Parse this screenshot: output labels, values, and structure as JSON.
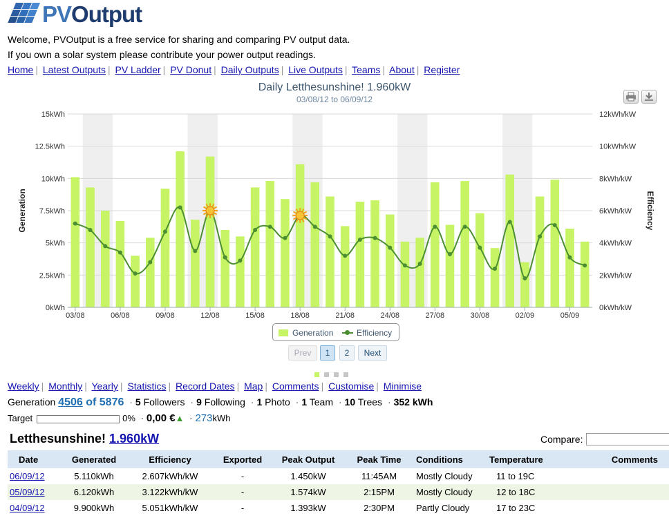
{
  "header": {
    "logo_text_pv": "PV",
    "logo_text_output": "Output",
    "welcome_line": "Welcome, PVOutput is a free service for sharing and comparing PV output data.",
    "contribute_line": "If you own a solar system please contribute your power output readings."
  },
  "nav": [
    "Home",
    "Latest Outputs",
    "PV Ladder",
    "PV Donut",
    "Daily Outputs",
    "Live Outputs",
    "Teams",
    "About",
    "Register"
  ],
  "colors": {
    "bar": "#c7f464",
    "line": "#4b8f32",
    "weekend_band": "#efefef",
    "link": "#1515b0",
    "accent_blue": "#1f6fb2"
  },
  "chart_data": {
    "type": "bar",
    "title": "Daily Letthesunshine! 1.960kW",
    "subtitle": "03/08/12 to 06/09/12",
    "ylabel": "Generation",
    "y2label": "Efficiency",
    "ylim": [
      0,
      15
    ],
    "y2lim": [
      0,
      12
    ],
    "y_ticks": [
      "0kWh",
      "2.5kWh",
      "5kWh",
      "7.5kWh",
      "10kWh",
      "12.5kWh",
      "15kWh"
    ],
    "y2_ticks": [
      "0kWh/kW",
      "2kWh/kW",
      "4kWh/kW",
      "6kWh/kW",
      "8kWh/kW",
      "10kWh/kW",
      "12kWh/kW"
    ],
    "x_ticks": [
      "03/08",
      "06/08",
      "09/08",
      "12/08",
      "15/08",
      "18/08",
      "21/08",
      "24/08",
      "27/08",
      "30/08",
      "02/09",
      "05/09"
    ],
    "categories": [
      "03/08",
      "04/08",
      "05/08",
      "06/08",
      "07/08",
      "08/08",
      "09/08",
      "10/08",
      "11/08",
      "12/08",
      "13/08",
      "14/08",
      "15/08",
      "16/08",
      "17/08",
      "18/08",
      "19/08",
      "20/08",
      "21/08",
      "22/08",
      "23/08",
      "24/08",
      "25/08",
      "26/08",
      "27/08",
      "28/08",
      "29/08",
      "30/08",
      "31/08",
      "01/09",
      "02/09",
      "03/09",
      "04/09",
      "05/09",
      "06/09"
    ],
    "shaded_categories": [
      "04/08",
      "05/08",
      "11/08",
      "12/08",
      "18/08",
      "19/08",
      "25/08",
      "26/08",
      "01/09",
      "02/09"
    ],
    "series": [
      {
        "name": "Generation",
        "axis": "left",
        "values": [
          10.1,
          9.3,
          7.5,
          6.7,
          4.0,
          5.4,
          9.2,
          12.1,
          6.8,
          11.7,
          6.0,
          5.5,
          9.3,
          9.8,
          8.4,
          11.1,
          9.7,
          8.6,
          6.3,
          8.2,
          8.3,
          7.2,
          5.1,
          5.4,
          9.7,
          6.4,
          9.8,
          7.3,
          4.6,
          10.3,
          3.5,
          8.6,
          9.9,
          6.1,
          5.1
        ]
      },
      {
        "name": "Efficiency",
        "axis": "right",
        "values": [
          5.2,
          4.8,
          3.8,
          3.4,
          2.1,
          2.8,
          4.7,
          6.2,
          3.5,
          6.0,
          3.1,
          2.9,
          4.8,
          5.0,
          4.3,
          5.7,
          5.0,
          4.4,
          3.2,
          4.2,
          4.3,
          3.7,
          2.6,
          2.7,
          5.0,
          3.3,
          5.0,
          3.7,
          2.4,
          5.3,
          1.8,
          4.4,
          5.1,
          3.1,
          2.6
        ]
      }
    ],
    "sun_markers": [
      "12/08",
      "18/08"
    ],
    "legend": "bottom-center",
    "grid": true
  },
  "pager": {
    "prev": "Prev",
    "pages": [
      "1",
      "2"
    ],
    "next": "Next"
  },
  "links2": [
    "Weekly",
    "Monthly",
    "Yearly",
    "Statistics",
    "Record Dates",
    "Map",
    "Comments",
    "Customise",
    "Minimise"
  ],
  "stats": {
    "generation_label": "Generation",
    "rank": "4506",
    "of_total": "of 5876",
    "followers_num": "5",
    "followers_label": "Followers",
    "following_num": "9",
    "following_label": "Following",
    "photo_num": "1",
    "photo_label": "Photo",
    "team_num": "1",
    "team_label": "Team",
    "trees_num": "10",
    "trees_label": "Trees",
    "kwh": "352 kWh"
  },
  "target": {
    "label": "Target",
    "percent": "0%",
    "progress": 0,
    "money": "0,00 €",
    "value": "273",
    "unit": "kWh"
  },
  "system": {
    "name": "Letthesunshine!",
    "size": "1.960kW"
  },
  "compare": {
    "label": "Compare:",
    "value": ""
  },
  "table": {
    "headers": [
      "Date",
      "Generated",
      "Efficiency",
      "Exported",
      "Peak Output",
      "Peak Time",
      "Conditions",
      "Temperature",
      "Comments"
    ],
    "rows": [
      [
        "06/09/12",
        "5.110kWh",
        "2.607kWh/kW",
        "-",
        "1.450kW",
        "11:45AM",
        "Mostly Cloudy",
        "11 to 19C",
        ""
      ],
      [
        "05/09/12",
        "6.120kWh",
        "3.122kWh/kW",
        "-",
        "1.574kW",
        "2:15PM",
        "Mostly Cloudy",
        "12 to 18C",
        ""
      ],
      [
        "04/09/12",
        "9.900kWh",
        "5.051kWh/kW",
        "-",
        "1.393kW",
        "2:30PM",
        "Partly Cloudy",
        "17 to 23C",
        ""
      ]
    ]
  }
}
